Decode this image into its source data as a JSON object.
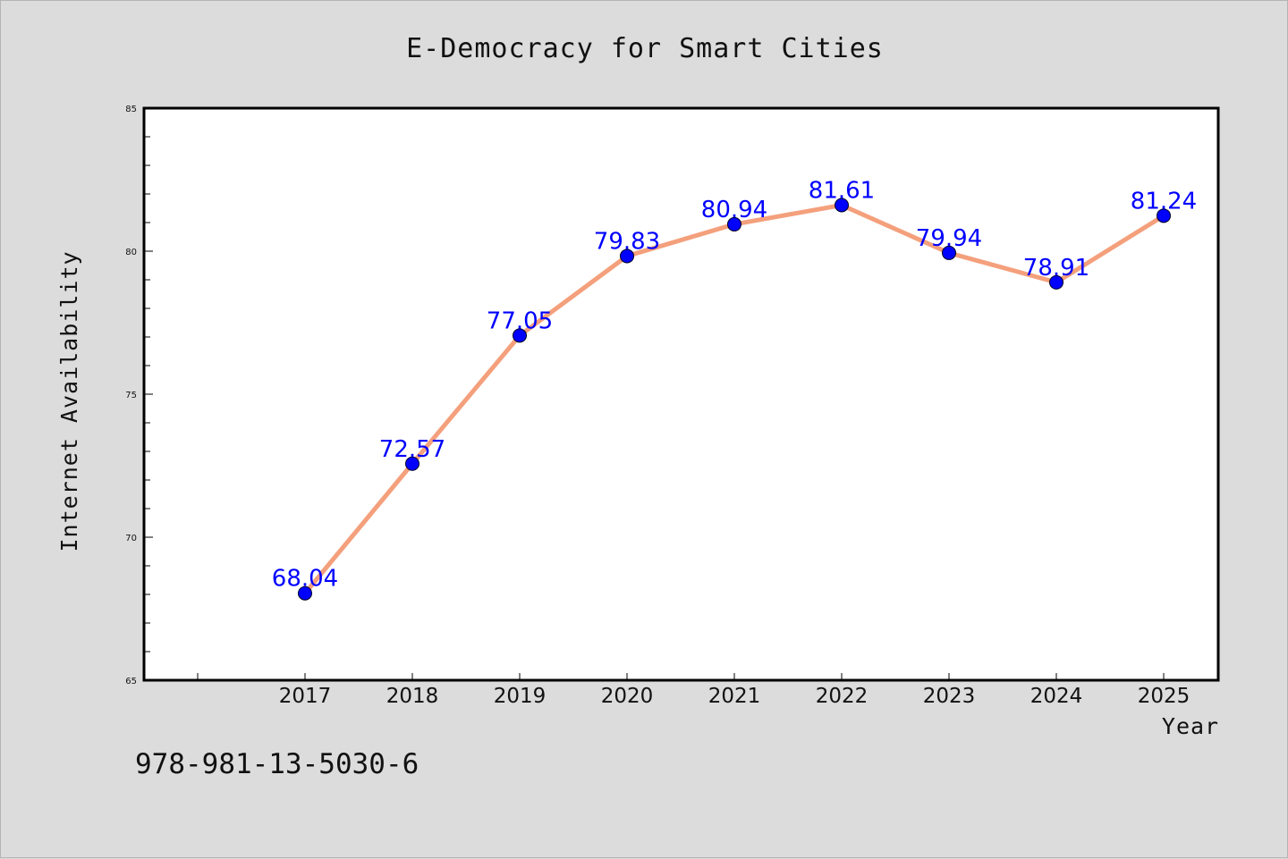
{
  "chart_data": {
    "type": "line",
    "title": "E-Democracy for Smart Cities",
    "xlabel": "Year",
    "ylabel": "Internet Availability",
    "categories": [
      "2017",
      "2018",
      "2019",
      "2020",
      "2021",
      "2022",
      "2023",
      "2024",
      "2025"
    ],
    "series": [
      {
        "values": [
          68.04,
          72.57,
          77.05,
          79.83,
          80.94,
          81.61,
          79.94,
          78.91,
          81.24
        ]
      }
    ],
    "data_labels": [
      "68.04",
      "72.57",
      "77.05",
      "79.83",
      "80.94",
      "81.61",
      "79.94",
      "78.91",
      "81.24"
    ],
    "ylim": [
      65,
      85
    ],
    "yticks": [
      65,
      70,
      75,
      80,
      85
    ],
    "grid": false,
    "line_color": "#f4a07c",
    "marker_color": "#0000ff",
    "label_color": "#0000ff"
  },
  "footer": {
    "isbn": "978-981-13-5030-6"
  }
}
